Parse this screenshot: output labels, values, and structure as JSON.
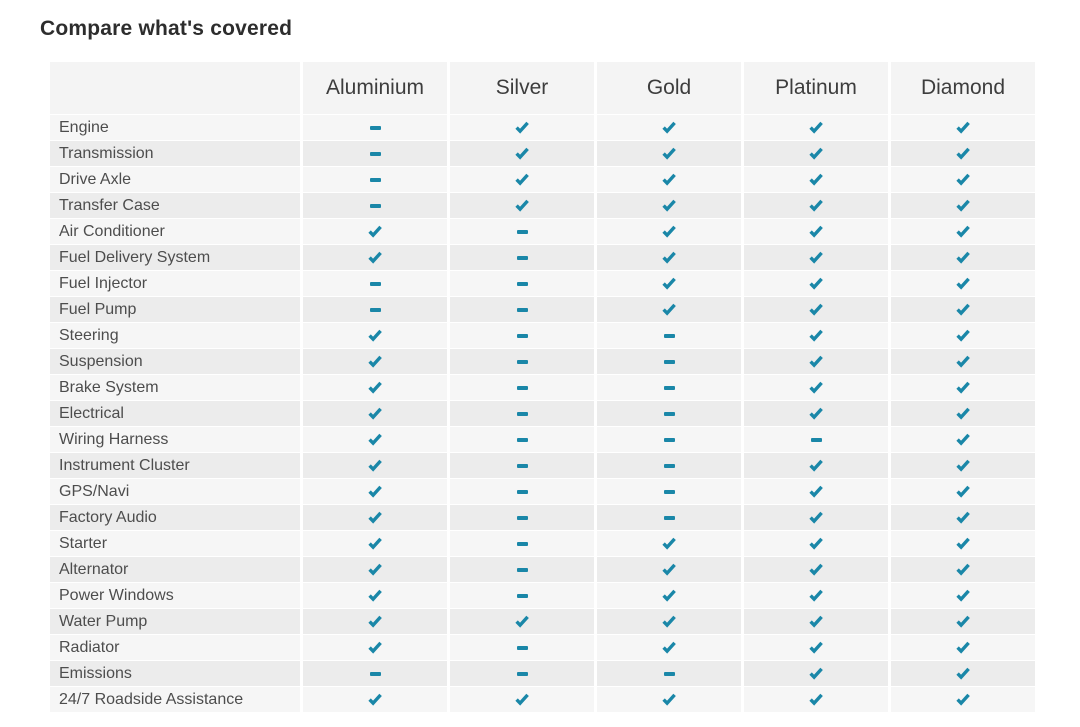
{
  "title": "Compare what's covered",
  "colors": {
    "accent": "#1a87a8",
    "row_odd": "#f6f6f6",
    "row_even": "#ececec",
    "header_bg": "#f4f4f4"
  },
  "icons": {
    "check": "check-icon",
    "dash": "dash-icon"
  },
  "table": {
    "columns": [
      "Aluminium",
      "Silver",
      "Gold",
      "Platinum",
      "Diamond"
    ],
    "rows": [
      {
        "label": "Engine",
        "values": [
          "dash",
          "check",
          "check",
          "check",
          "check"
        ]
      },
      {
        "label": "Transmission",
        "values": [
          "dash",
          "check",
          "check",
          "check",
          "check"
        ]
      },
      {
        "label": "Drive Axle",
        "values": [
          "dash",
          "check",
          "check",
          "check",
          "check"
        ]
      },
      {
        "label": "Transfer Case",
        "values": [
          "dash",
          "check",
          "check",
          "check",
          "check"
        ]
      },
      {
        "label": "Air Conditioner",
        "values": [
          "check",
          "dash",
          "check",
          "check",
          "check"
        ]
      },
      {
        "label": "Fuel Delivery System",
        "values": [
          "check",
          "dash",
          "check",
          "check",
          "check"
        ]
      },
      {
        "label": "Fuel Injector",
        "values": [
          "dash",
          "dash",
          "check",
          "check",
          "check"
        ]
      },
      {
        "label": "Fuel Pump",
        "values": [
          "dash",
          "dash",
          "check",
          "check",
          "check"
        ]
      },
      {
        "label": "Steering",
        "values": [
          "check",
          "dash",
          "dash",
          "check",
          "check"
        ]
      },
      {
        "label": "Suspension",
        "values": [
          "check",
          "dash",
          "dash",
          "check",
          "check"
        ]
      },
      {
        "label": "Brake System",
        "values": [
          "check",
          "dash",
          "dash",
          "check",
          "check"
        ]
      },
      {
        "label": "Electrical",
        "values": [
          "check",
          "dash",
          "dash",
          "check",
          "check"
        ]
      },
      {
        "label": "Wiring Harness",
        "values": [
          "check",
          "dash",
          "dash",
          "dash",
          "check"
        ]
      },
      {
        "label": "Instrument Cluster",
        "values": [
          "check",
          "dash",
          "dash",
          "check",
          "check"
        ]
      },
      {
        "label": "GPS/Navi",
        "values": [
          "check",
          "dash",
          "dash",
          "check",
          "check"
        ]
      },
      {
        "label": "Factory Audio",
        "values": [
          "check",
          "dash",
          "dash",
          "check",
          "check"
        ]
      },
      {
        "label": "Starter",
        "values": [
          "check",
          "dash",
          "check",
          "check",
          "check"
        ]
      },
      {
        "label": "Alternator",
        "values": [
          "check",
          "dash",
          "check",
          "check",
          "check"
        ]
      },
      {
        "label": "Power Windows",
        "values": [
          "check",
          "dash",
          "check",
          "check",
          "check"
        ]
      },
      {
        "label": "Water Pump",
        "values": [
          "check",
          "check",
          "check",
          "check",
          "check"
        ]
      },
      {
        "label": "Radiator",
        "values": [
          "check",
          "dash",
          "check",
          "check",
          "check"
        ]
      },
      {
        "label": "Emissions",
        "values": [
          "dash",
          "dash",
          "dash",
          "check",
          "check"
        ]
      },
      {
        "label": "24/7 Roadside Assistance",
        "values": [
          "check",
          "check",
          "check",
          "check",
          "check"
        ]
      }
    ]
  }
}
